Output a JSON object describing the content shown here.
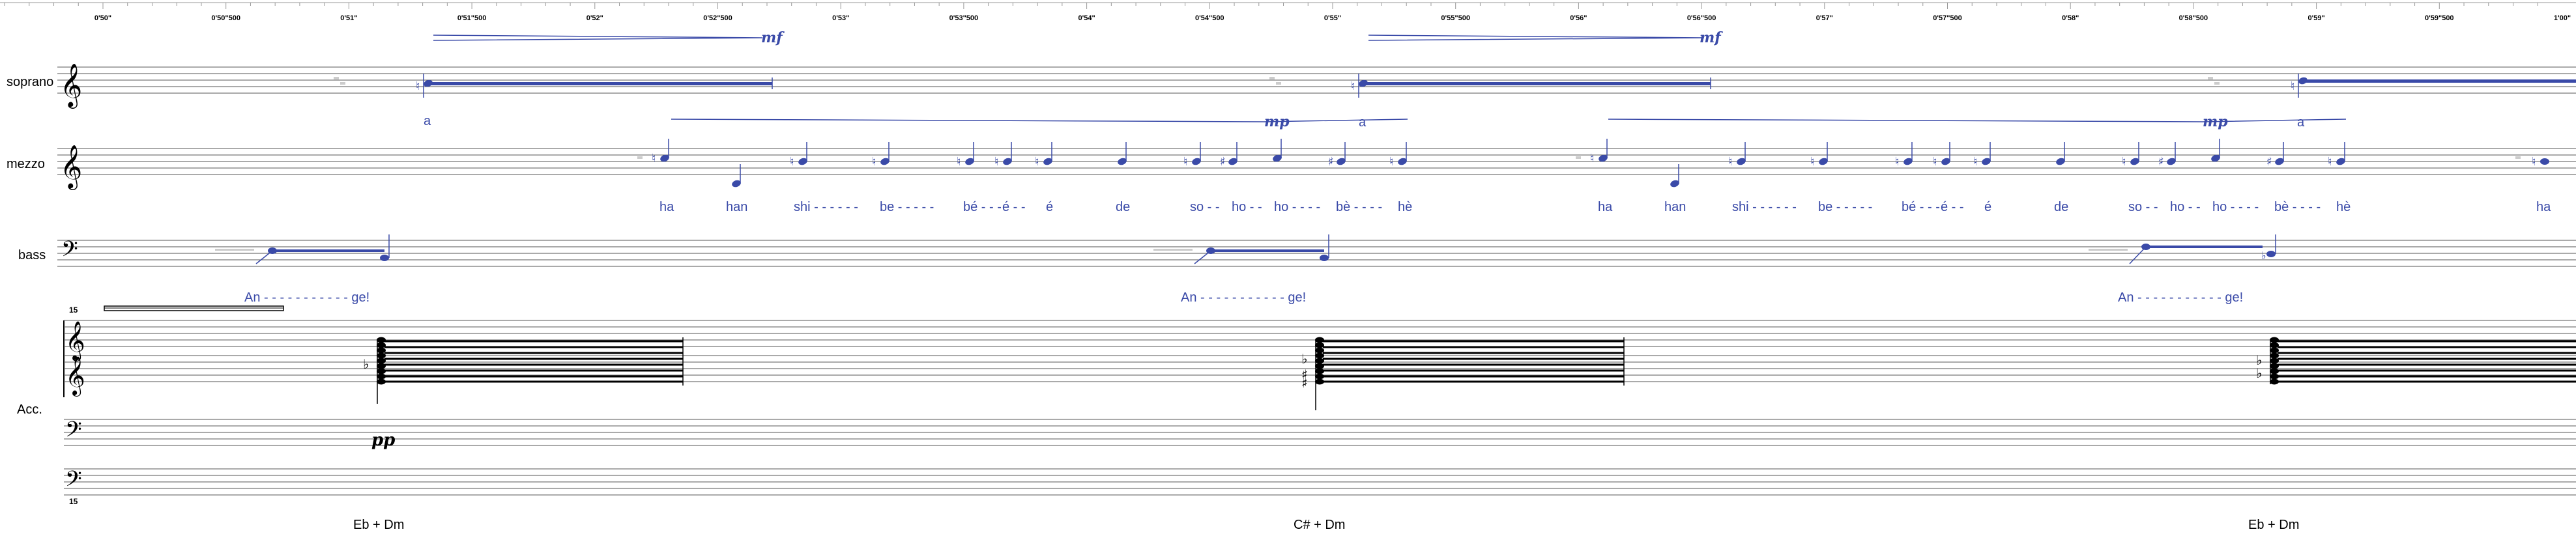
{
  "timeline": {
    "ticks": [
      "0'50\"",
      "0'50\"500",
      "0'51\"",
      "0'51\"500",
      "0'52\"",
      "0'52\"500",
      "0'53\"",
      "0'53\"500",
      "0'54\"",
      "0'54\"500",
      "0'55\"",
      "0'55\"500",
      "0'56\"",
      "0'56\"500",
      "0'57\"",
      "0'57\"500",
      "0'58\"",
      "0'58\"500",
      "0'59\"",
      "0'59\"500",
      "1'00\""
    ]
  },
  "staves": {
    "soprano": "soprano",
    "mezzo": "mezzo",
    "bass": "bass",
    "accordion": "Acc."
  },
  "soprano": {
    "dynamics": [
      "mf",
      "mf"
    ],
    "lyrics": [
      "a"
    ]
  },
  "mezzo": {
    "dynamics": [
      "mp",
      "mp"
    ],
    "end_lyrics": [
      "a",
      "a"
    ],
    "lyrics_group_1": [
      "ha",
      "han",
      "shi - - - - - -",
      "be - - - - -",
      "bé - - -",
      "é - -",
      "é",
      "de",
      "so - -",
      "ho - -",
      "ho - - - -",
      "bè - - - -",
      "hè"
    ],
    "lyrics_group_2": [
      "ha",
      "han",
      "shi - - - - - -",
      "be - - - - -",
      "bé - - -",
      "é - -",
      "é",
      "de",
      "so - -",
      "ho - -",
      "ho - - - -",
      "bè - - - -",
      "hè"
    ],
    "lyrics_tail": [
      "ha"
    ]
  },
  "bass": {
    "lyrics": [
      "An - - - - - - - - - - - ge!",
      "An - - - - - - - - - - - ge!",
      "An - - - - - - - - - - - ge!"
    ]
  },
  "accordion": {
    "octave_top": "15",
    "octave_bottom": "15",
    "dynamic": "pp"
  },
  "chords": [
    "Eb + Dm",
    "C# + Dm",
    "Eb + Dm"
  ],
  "colors": {
    "voice": "#3a4aa8",
    "staff": "#555555",
    "ink": "#000000"
  }
}
